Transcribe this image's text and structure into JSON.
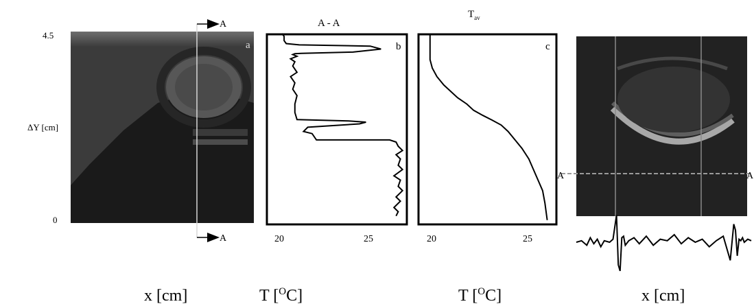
{
  "panel_a": {
    "label": "a",
    "y_axis_label": "ΔY [cm]",
    "y_ticks": [
      "4.5",
      "0"
    ],
    "x_axis_label": "x [cm]",
    "section_marker_top": "A",
    "section_marker_bottom": "A"
  },
  "panel_b": {
    "label": "b",
    "title": "A - A",
    "x_ticks": [
      "20",
      "25"
    ],
    "x_axis_label_main": "T [",
    "x_axis_label_sup": "O",
    "x_axis_label_end": "C]"
  },
  "panel_c": {
    "label": "c",
    "title_main": "T",
    "title_sub": "av",
    "x_ticks": [
      "20",
      "25"
    ],
    "x_axis_label_main": "T [",
    "x_axis_label_sup": "O",
    "x_axis_label_end": "C]"
  },
  "panel_d": {
    "section_marker_left": "A",
    "section_marker_right": "A",
    "x_axis_label": "x [cm]"
  },
  "chart_data": [
    {
      "type": "line",
      "panel": "b",
      "title": "A - A",
      "xlabel": "T [OC]",
      "ylabel": "ΔY [cm]",
      "xlim": [
        19.5,
        26
      ],
      "ylim": [
        0,
        4.5
      ],
      "x_ticks": [
        20,
        25
      ],
      "series": [
        {
          "x": [
            25.5,
            25.6,
            25.4,
            25.7,
            25.5,
            25.8,
            25.6,
            25.7,
            25.4,
            25.8,
            25.6,
            25.7,
            25.5,
            25.8,
            25.6,
            25.5,
            25.2,
            23.0,
            21.8,
            21.6,
            21.2,
            21.4,
            23.8,
            24.1,
            23.3,
            20.9,
            20.8,
            20.8,
            20.9,
            20.7,
            20.8,
            20.6,
            20.9,
            20.7,
            20.8,
            20.6,
            20.9,
            20.7,
            20.8,
            21.1,
            23.5,
            24.8,
            24.3,
            21.0,
            20.4,
            20.3,
            20.3,
            20.2
          ],
          "y": [
            0.2,
            0.3,
            0.4,
            0.55,
            0.65,
            0.8,
            0.9,
            1.05,
            1.15,
            1.3,
            1.4,
            1.55,
            1.65,
            1.75,
            1.85,
            1.95,
            2.0,
            2.0,
            2.0,
            2.15,
            2.2,
            2.3,
            2.38,
            2.42,
            2.45,
            2.48,
            2.65,
            2.85,
            3.05,
            3.2,
            3.35,
            3.5,
            3.6,
            3.75,
            3.85,
            3.92,
            3.98,
            4.02,
            4.04,
            4.05,
            4.08,
            4.15,
            4.22,
            4.25,
            4.28,
            4.35,
            4.45,
            4.52
          ]
        }
      ]
    },
    {
      "type": "line",
      "panel": "c",
      "title": "Tav",
      "xlabel": "T [OC]",
      "ylabel": "ΔY [cm]",
      "xlim": [
        19.5,
        25.5
      ],
      "ylim": [
        0,
        4.5
      ],
      "x_ticks": [
        20,
        25
      ],
      "series": [
        {
          "x": [
            20.0,
            20.0,
            20.0,
            20.1,
            20.3,
            20.6,
            20.9,
            21.2,
            21.6,
            21.9,
            22.3,
            22.7,
            23.1,
            23.4,
            23.7,
            24.0,
            24.3,
            24.5,
            24.7,
            24.9,
            25.0,
            25.1
          ],
          "y": [
            4.5,
            4.2,
            3.9,
            3.7,
            3.5,
            3.3,
            3.15,
            3.0,
            2.85,
            2.7,
            2.58,
            2.47,
            2.35,
            2.2,
            2.0,
            1.8,
            1.55,
            1.3,
            1.05,
            0.8,
            0.5,
            0.1
          ]
        }
      ]
    },
    {
      "type": "line",
      "panel": "d-profile",
      "title": "",
      "series": [
        {
          "x": [
            0,
            3,
            6,
            8,
            10,
            12,
            14,
            16,
            19,
            21,
            23,
            24,
            25,
            26,
            27,
            28,
            30,
            33,
            36,
            40,
            44,
            48,
            52,
            56,
            60,
            64,
            68,
            72,
            76,
            80,
            84,
            88,
            90,
            91,
            92,
            93,
            94,
            95,
            96,
            98,
            100
          ],
          "y": [
            0.0,
            0.1,
            -0.2,
            0.3,
            -0.1,
            0.2,
            -0.3,
            0.1,
            0.0,
            0.2,
            1.8,
            -1.5,
            -1.9,
            0.3,
            0.4,
            -0.2,
            0.1,
            0.3,
            -0.1,
            0.4,
            -0.2,
            0.2,
            0.1,
            0.5,
            -0.1,
            0.3,
            0.0,
            0.2,
            -0.3,
            0.1,
            0.4,
            -1.2,
            1.2,
            0.8,
            -0.9,
            0.2,
            0.1,
            0.3,
            0.0,
            0.2,
            0.1
          ]
        }
      ]
    }
  ]
}
